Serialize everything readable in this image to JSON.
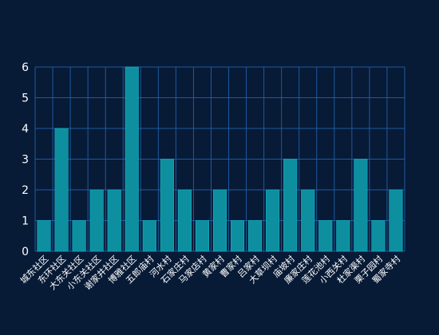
{
  "colors": {
    "background": "#071a36",
    "grid": "#1f5a9f",
    "bar": "#0d8fa0",
    "bar_edge": "#18b6c7",
    "axis_text": "#ffffff"
  },
  "chart_data": {
    "type": "bar",
    "categories": [
      "城东社区",
      "东环社区",
      "大东关社区",
      "小东关社区",
      "谢家井社区",
      "博雅社区",
      "五郎庙村",
      "河水村",
      "石家庄村",
      "马家店村",
      "黄家村",
      "曹家村",
      "吕家村",
      "大草坝村",
      "庙坡村",
      "廉家庄村",
      "莲花池村",
      "小西关村",
      "杜家渠村",
      "栗子园村",
      "蜀家寺村"
    ],
    "values": [
      1,
      4,
      1,
      2,
      2,
      6,
      1,
      3,
      2,
      1,
      2,
      1,
      1,
      2,
      3,
      2,
      1,
      1,
      3,
      1,
      2
    ],
    "ylim": [
      0,
      6
    ],
    "yticks": [
      0,
      1,
      2,
      3,
      4,
      5,
      6
    ],
    "grid": true,
    "xlabel": "",
    "ylabel": ""
  }
}
